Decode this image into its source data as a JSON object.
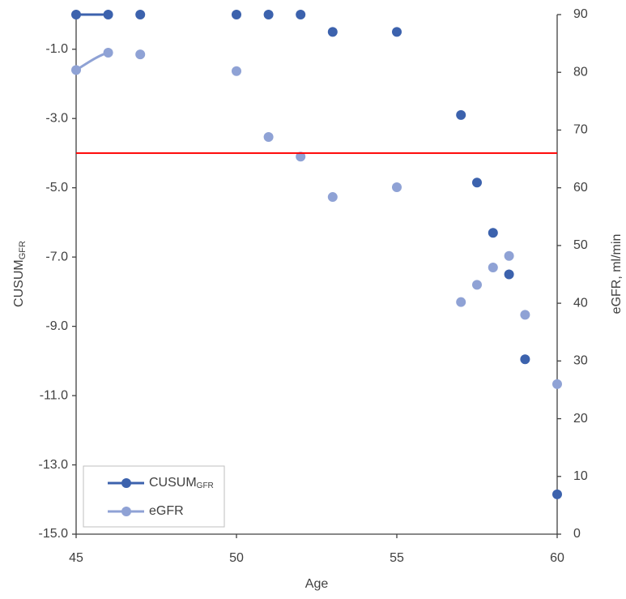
{
  "chart_data": {
    "type": "line",
    "x_label": "Age",
    "y_label": "CUSUM",
    "y_label_sub": "GFR",
    "y2_label": "eGFR, ml/min",
    "xlim": [
      45,
      60
    ],
    "xticks": [
      45,
      50,
      55,
      60
    ],
    "ylim": [
      -15,
      0
    ],
    "yticks": [
      {
        "value": -15,
        "label": "-15.0"
      },
      {
        "value": -13,
        "label": "-13.0"
      },
      {
        "value": -11,
        "label": "-11.0"
      },
      {
        "value": -9,
        "label": "-9.0"
      },
      {
        "value": -7,
        "label": "-7.0"
      },
      {
        "value": -5,
        "label": "-5.0"
      },
      {
        "value": -3,
        "label": "-3.0"
      },
      {
        "value": -1,
        "label": "-1.0"
      }
    ],
    "y2lim": [
      0,
      90
    ],
    "y2ticks": [
      0,
      10,
      20,
      30,
      40,
      50,
      60,
      70,
      80,
      90
    ],
    "threshold": -4,
    "threshold_color": "#ff0000",
    "grid": false,
    "legend": "lower-left",
    "x": [
      45,
      46,
      47,
      50,
      51,
      52,
      53,
      55,
      57,
      57.5,
      58,
      58.5,
      59,
      60
    ],
    "series": [
      {
        "name": "CUSUM",
        "name_sub": "GFR",
        "color": "#3c62ad",
        "values": [
          0,
          0,
          0,
          0,
          0,
          0,
          -0.5,
          -0.5,
          -2.9,
          -4.85,
          -6.3,
          -7.5,
          -9.95,
          -13.85
        ]
      },
      {
        "name": "eGFR",
        "color": "#8fa2d5",
        "axis": "y2",
        "values": [
          80.4,
          83.4,
          83.1,
          80.2,
          68.8,
          65.4,
          58.4,
          60.1,
          40.2,
          43.2,
          46.2,
          48.2,
          38.0,
          26.0
        ]
      }
    ]
  }
}
